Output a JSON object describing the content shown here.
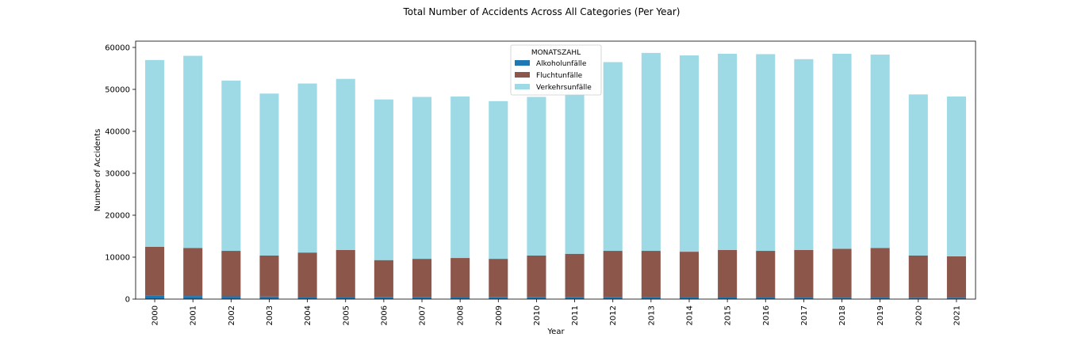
{
  "chart_data": {
    "type": "bar",
    "stacked": true,
    "title": "Total Number of Accidents Across All Categories (Per Year)",
    "xlabel": "Year",
    "ylabel": "Number of Accidents",
    "ylim": [
      0,
      61500
    ],
    "yticks": [
      0,
      10000,
      20000,
      30000,
      40000,
      50000,
      60000
    ],
    "grid": false,
    "legend": {
      "title": "MONATSZAHL",
      "placement": "top-center"
    },
    "categories": [
      "2000",
      "2001",
      "2002",
      "2003",
      "2004",
      "2005",
      "2006",
      "2007",
      "2008",
      "2009",
      "2010",
      "2011",
      "2012",
      "2013",
      "2014",
      "2015",
      "2016",
      "2017",
      "2018",
      "2019",
      "2020",
      "2021"
    ],
    "series": [
      {
        "name": "Alkoholunfälle",
        "color": "#1f77b4",
        "values": [
          780,
          740,
          660,
          620,
          560,
          560,
          520,
          500,
          470,
          430,
          420,
          410,
          400,
          390,
          380,
          380,
          370,
          360,
          350,
          360,
          330,
          340
        ]
      },
      {
        "name": "Fluchtunfälle",
        "color": "#8c564b",
        "values": [
          11670,
          11460,
          10840,
          9780,
          10540,
          11140,
          8780,
          9100,
          9330,
          9170,
          9980,
          10390,
          11100,
          11110,
          10920,
          11320,
          11130,
          11340,
          11650,
          11840,
          10070,
          9860
        ]
      },
      {
        "name": "Verkehrsunfälle",
        "color": "#9edae5",
        "values": [
          44550,
          45800,
          40600,
          38600,
          40300,
          40800,
          38300,
          38600,
          38500,
          37600,
          37800,
          38000,
          45000,
          47200,
          46800,
          46800,
          46900,
          45500,
          46500,
          46100,
          38400,
          38100
        ]
      }
    ]
  }
}
